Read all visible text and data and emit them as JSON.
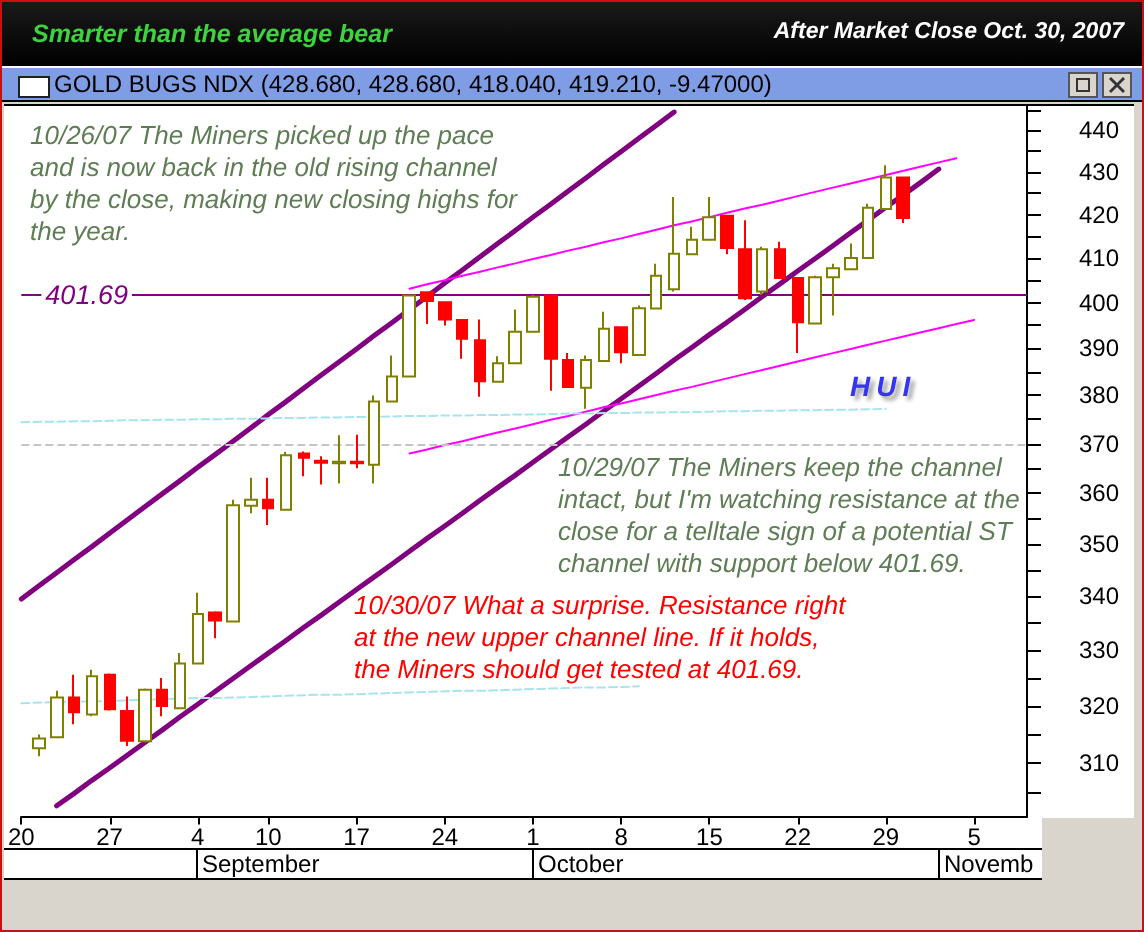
{
  "chart_data": {
    "type": "candlestick",
    "title": "GOLD BUGS NDX (428.680, 428.680, 418.040, 419.210, -9.47000)",
    "subtitle": "After Market Close Oct. 30, 2007",
    "categories": [
      "20",
      null,
      null,
      null,
      null,
      "27",
      null,
      null,
      null,
      null,
      "4",
      null,
      null,
      null,
      "10",
      null,
      null,
      null,
      null,
      "17",
      null,
      null,
      null,
      null,
      "24",
      null,
      null,
      null,
      null,
      "1",
      null,
      null,
      null,
      null,
      "8",
      null,
      null,
      null,
      null,
      "15",
      null,
      null,
      null,
      null,
      "22",
      null,
      null,
      null,
      null,
      "29",
      null,
      null,
      null,
      null,
      "5",
      null,
      null,
      null
    ],
    "ohlc": [
      null,
      [
        312.6,
        315.0,
        311.2,
        314.3
      ],
      [
        314.5,
        322.7,
        314.5,
        321.5
      ],
      [
        321.5,
        325.6,
        316.8,
        318.9
      ],
      [
        318.5,
        326.5,
        318.2,
        325.3
      ],
      [
        325.6,
        325.8,
        319.2,
        319.4
      ],
      [
        319.1,
        321.7,
        313.0,
        313.9
      ],
      [
        313.8,
        323.1,
        313.6,
        322.9
      ],
      [
        322.9,
        325.0,
        318.2,
        320.0
      ],
      [
        319.6,
        329.5,
        319.4,
        327.6
      ],
      [
        327.6,
        340.7,
        327.6,
        336.7
      ],
      [
        337.0,
        337.2,
        332.2,
        335.5
      ],
      [
        335.3,
        358.7,
        335.3,
        357.6
      ],
      [
        357.5,
        363.1,
        356.0,
        358.7
      ],
      [
        358.7,
        363.1,
        353.7,
        357.0
      ],
      [
        356.7,
        368.3,
        356.7,
        367.6
      ],
      [
        368.0,
        368.4,
        363.4,
        367.1
      ],
      [
        366.5,
        367.4,
        361.7,
        366.1
      ],
      [
        366.0,
        371.7,
        361.9,
        366.3
      ],
      [
        366.3,
        371.8,
        365.0,
        366.0
      ],
      [
        365.7,
        380.0,
        361.9,
        378.7
      ],
      [
        378.7,
        388.5,
        378.7,
        384.0
      ],
      [
        384.0,
        401.6,
        384.0,
        401.6
      ],
      [
        402.3,
        402.5,
        395.3,
        400.4
      ],
      [
        400.1,
        400.1,
        395.0,
        396.3
      ],
      [
        396.2,
        396.2,
        387.8,
        392.1
      ],
      [
        391.8,
        396.3,
        379.7,
        383.0
      ],
      [
        382.9,
        388.3,
        382.9,
        386.8
      ],
      [
        386.8,
        398.5,
        386.8,
        393.6
      ],
      [
        393.6,
        401.7,
        393.6,
        401.3
      ],
      [
        401.6,
        401.6,
        381.0,
        387.8
      ],
      [
        387.5,
        389.0,
        381.8,
        381.8
      ],
      [
        381.6,
        388.5,
        377.2,
        387.5
      ],
      [
        387.3,
        398.0,
        387.3,
        394.3
      ],
      [
        394.6,
        394.6,
        386.8,
        389.2
      ],
      [
        388.6,
        399.4,
        388.6,
        398.8
      ],
      [
        398.7,
        408.7,
        398.7,
        406.0
      ],
      [
        403.0,
        424.1,
        402.5,
        411.0
      ],
      [
        410.9,
        417.2,
        410.9,
        414.2
      ],
      [
        414.2,
        424.1,
        414.2,
        419.4
      ],
      [
        419.7,
        419.7,
        410.9,
        412.3
      ],
      [
        412.0,
        418.7,
        400.6,
        401.0
      ],
      [
        402.5,
        412.6,
        401.7,
        412.0
      ],
      [
        412.0,
        413.7,
        405.5,
        405.5
      ],
      [
        405.5,
        405.5,
        389.0,
        395.7
      ],
      [
        395.4,
        406.0,
        395.4,
        405.7
      ],
      [
        405.7,
        408.7,
        397.2,
        407.7
      ],
      [
        407.5,
        413.3,
        407.5,
        410.0
      ],
      [
        410.0,
        422.5,
        410.0,
        421.6
      ],
      [
        421.3,
        431.6,
        421.3,
        428.7
      ],
      [
        428.68,
        428.68,
        418.04,
        419.21
      ],
      null,
      null,
      null,
      null,
      null,
      null,
      null
    ],
    "colors": [
      null,
      "#808000",
      "#808000",
      "#ff0000",
      "#808000",
      "#ff0000",
      "#ff0000",
      "#808000",
      "#ff0000",
      "#808000",
      "#808000",
      "#ff0000",
      "#808000",
      "#808000",
      "#ff0000",
      "#808000",
      "#ff0000",
      "#ff0000",
      "#808000",
      "#ff0000",
      "#808000",
      "#808000",
      "#808000",
      "#ff0000",
      "#ff0000",
      "#ff0000",
      "#ff0000",
      "#808000",
      "#808000",
      "#808000",
      "#ff0000",
      "#ff0000",
      "#808000",
      "#808000",
      "#ff0000",
      "#808000",
      "#808000",
      "#808000",
      "#808000",
      "#808000",
      "#ff0000",
      "#ff0000",
      "#808000",
      "#ff0000",
      "#ff0000",
      "#808000",
      "#808000",
      "#808000",
      "#808000",
      "#808000",
      "#ff0000",
      null,
      null,
      null,
      null,
      null,
      null,
      null
    ],
    "series": [
      {
        "type": "line",
        "color": "#800080",
        "line_style": "solid",
        "values": [
          339.5,
          342.0,
          344.5,
          347.0,
          349.5,
          352.1,
          354.7,
          357.3,
          359.9,
          362.5,
          365.2,
          367.8,
          370.5,
          373.2,
          376.0,
          378.7,
          381.5,
          384.3,
          387.1,
          389.9,
          392.8,
          395.6,
          398.5,
          401.4,
          404.4,
          407.3,
          410.3,
          413.3,
          416.3,
          419.4,
          422.4,
          425.5,
          428.6,
          431.8,
          434.9,
          438.1,
          441.3,
          444.5,
          null,
          null,
          null,
          null,
          null,
          null,
          null,
          null,
          null,
          null,
          null,
          null,
          null,
          null,
          null,
          null,
          null,
          null,
          null,
          null
        ]
      },
      {
        "type": "line",
        "color": "#800080",
        "line_style": "solid",
        "values": [
          null,
          null,
          302.8,
          304.9,
          307.1,
          309.2,
          311.4,
          313.6,
          315.8,
          318.1,
          320.3,
          322.6,
          324.9,
          327.2,
          329.5,
          331.8,
          334.2,
          336.5,
          338.9,
          341.3,
          343.7,
          346.1,
          348.6,
          351.1,
          353.5,
          356.0,
          358.6,
          361.1,
          363.6,
          366.2,
          368.8,
          371.4,
          374.0,
          376.7,
          379.3,
          382.0,
          384.7,
          387.5,
          390.2,
          393.0,
          395.7,
          398.5,
          401.4,
          404.2,
          407.1,
          409.9,
          412.8,
          415.8,
          418.7,
          421.7,
          424.6,
          427.6,
          430.7,
          null,
          null,
          null,
          null,
          null
        ]
      },
      {
        "type": "line",
        "color": "#ff00ff",
        "line_style": "solid",
        "values": [
          null,
          null,
          null,
          null,
          null,
          null,
          null,
          null,
          null,
          null,
          null,
          null,
          null,
          null,
          null,
          null,
          null,
          null,
          null,
          null,
          null,
          null,
          403.1,
          404.1,
          405.0,
          406.0,
          406.9,
          407.9,
          408.8,
          409.8,
          410.7,
          411.7,
          412.6,
          413.6,
          414.5,
          415.5,
          416.5,
          417.5,
          418.4,
          419.4,
          420.4,
          421.4,
          422.3,
          423.3,
          424.3,
          425.3,
          426.3,
          427.3,
          428.3,
          429.3,
          430.3,
          431.3,
          432.3,
          433.3,
          null,
          null,
          null,
          null
        ]
      },
      {
        "type": "line",
        "color": "#ff00ff",
        "line_style": "solid",
        "values": [
          null,
          null,
          null,
          null,
          null,
          null,
          null,
          null,
          null,
          null,
          null,
          null,
          null,
          null,
          null,
          null,
          null,
          null,
          null,
          null,
          null,
          null,
          368.0,
          368.8,
          369.7,
          370.5,
          371.4,
          372.3,
          373.1,
          374.0,
          374.9,
          375.7,
          376.6,
          377.5,
          378.3,
          379.2,
          380.1,
          381.0,
          381.8,
          382.7,
          383.6,
          384.5,
          385.4,
          386.3,
          387.2,
          388.1,
          389.0,
          389.9,
          390.8,
          391.7,
          392.6,
          393.5,
          394.4,
          395.3,
          396.2,
          null,
          null,
          null
        ]
      },
      {
        "type": "line",
        "color": "#a8e4ec",
        "line_style": "dashed",
        "values": [
          374.4,
          374.5,
          374.5,
          374.6,
          374.6,
          374.7,
          374.8,
          374.8,
          374.9,
          374.9,
          375.0,
          375.0,
          375.1,
          375.1,
          375.2,
          375.3,
          375.3,
          375.4,
          375.4,
          375.5,
          375.5,
          375.6,
          375.7,
          375.7,
          375.8,
          375.8,
          375.9,
          375.9,
          376.0,
          376.0,
          376.1,
          376.2,
          376.2,
          376.3,
          376.3,
          376.4,
          376.4,
          376.5,
          376.5,
          376.6,
          376.7,
          376.7,
          376.8,
          376.8,
          376.9,
          376.9,
          377.0,
          377.0,
          377.1,
          377.2,
          null,
          null,
          null,
          null,
          null,
          null,
          null,
          null
        ]
      },
      {
        "type": "line",
        "color": "#a8e4ec",
        "line_style": "dashed",
        "values": [
          320.5,
          320.6,
          320.7,
          320.8,
          320.8,
          320.9,
          321.0,
          321.1,
          321.2,
          321.3,
          321.4,
          321.4,
          321.5,
          321.6,
          321.7,
          321.8,
          321.9,
          322.0,
          322.0,
          322.1,
          322.2,
          322.3,
          322.4,
          322.5,
          322.6,
          322.7,
          322.7,
          322.8,
          322.9,
          323.0,
          323.1,
          323.2,
          323.3,
          323.3,
          323.4,
          323.5,
          null,
          null,
          null,
          null,
          null,
          null,
          null,
          null,
          null,
          null,
          null,
          null,
          null,
          null,
          null,
          null,
          null,
          null,
          null,
          null,
          null,
          null
        ]
      }
    ],
    "ylim": [
      301,
      446
    ],
    "log": true,
    "yticks": [
      {
        "value": 305,
        "label": null
      },
      310,
      {
        "value": 315,
        "label": null
      },
      320,
      {
        "value": 325,
        "label": null
      },
      330,
      {
        "value": 335,
        "label": null
      },
      340,
      {
        "value": 345,
        "label": null
      },
      350,
      {
        "value": 355,
        "label": null
      },
      360,
      {
        "value": 365,
        "label": null
      },
      370,
      {
        "value": 375,
        "label": null
      },
      380,
      {
        "value": 385,
        "label": null
      },
      390,
      {
        "value": 395,
        "label": null
      },
      400,
      {
        "value": 405,
        "label": null
      },
      410,
      {
        "value": 415,
        "label": null
      },
      420,
      {
        "value": 425,
        "label": null
      },
      430,
      {
        "value": 435,
        "label": null
      },
      440,
      {
        "value": 445,
        "label": null
      }
    ],
    "ref_lines": [
      {
        "axis": "y",
        "value": 401.69,
        "label": "401.69",
        "color": "#800080",
        "line_style": "solid"
      },
      {
        "axis": "y",
        "value": 370,
        "color": "#c4c4c4",
        "line_style": "dashed"
      }
    ],
    "annotations": [
      "10/26/07 The Miners picked up the pace and is now back in the old rising channel by the close, making new closing highs for the year.",
      "10/29/07 The Miners keep the channel intact, but I'm watching resistance at the close for a telltale sign of a potential ST channel with support below 401.69.",
      "10/30/07 What a surprise. Resistance right at the new upper channel line. If it holds, the Miners should get tested at 401.69.",
      "HUI",
      "Smarter than the average bear",
      "September",
      "October",
      "Novemb"
    ]
  }
}
